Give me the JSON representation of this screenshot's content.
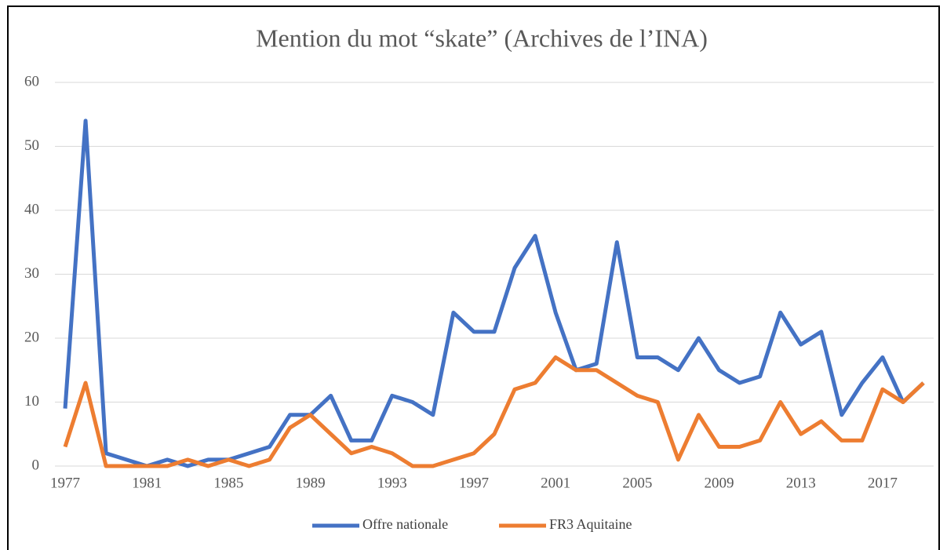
{
  "chart_data": {
    "type": "line",
    "title": "Mention du mot “skate” (Archives de l’INA)",
    "x": [
      1977,
      1978,
      1979,
      1980,
      1981,
      1982,
      1983,
      1984,
      1985,
      1986,
      1987,
      1988,
      1989,
      1990,
      1991,
      1992,
      1993,
      1994,
      1995,
      1996,
      1997,
      1998,
      1999,
      2000,
      2001,
      2002,
      2003,
      2004,
      2005,
      2006,
      2007,
      2008,
      2009,
      2010,
      2011,
      2012,
      2013,
      2014,
      2015,
      2016,
      2017,
      2018,
      2019
    ],
    "xlim": [
      1976.5,
      2019.5
    ],
    "xticks": [
      1977,
      1981,
      1985,
      1989,
      1993,
      1997,
      2001,
      2005,
      2009,
      2013,
      2017
    ],
    "ylim": [
      0,
      60
    ],
    "yticks": [
      0,
      10,
      20,
      30,
      40,
      50,
      60
    ],
    "grid": true,
    "legend": "bottom",
    "series": [
      {
        "name": "Offre nationale",
        "color": "#4472c4",
        "values": [
          9,
          54,
          2,
          1,
          0,
          1,
          0,
          1,
          1,
          2,
          3,
          8,
          8,
          11,
          4,
          4,
          11,
          10,
          8,
          24,
          21,
          21,
          31,
          36,
          24,
          15,
          16,
          35,
          17,
          17,
          15,
          20,
          15,
          13,
          14,
          24,
          19,
          21,
          8,
          13,
          17,
          10,
          13
        ]
      },
      {
        "name": "FR3 Aquitaine",
        "color": "#ed7d31",
        "values": [
          3,
          13,
          0,
          0,
          0,
          0,
          1,
          0,
          1,
          0,
          1,
          6,
          8,
          5,
          2,
          3,
          2,
          0,
          0,
          1,
          2,
          5,
          12,
          13,
          17,
          15,
          15,
          13,
          11,
          10,
          1,
          8,
          3,
          3,
          4,
          10,
          5,
          7,
          4,
          4,
          12,
          10,
          13
        ]
      }
    ]
  }
}
